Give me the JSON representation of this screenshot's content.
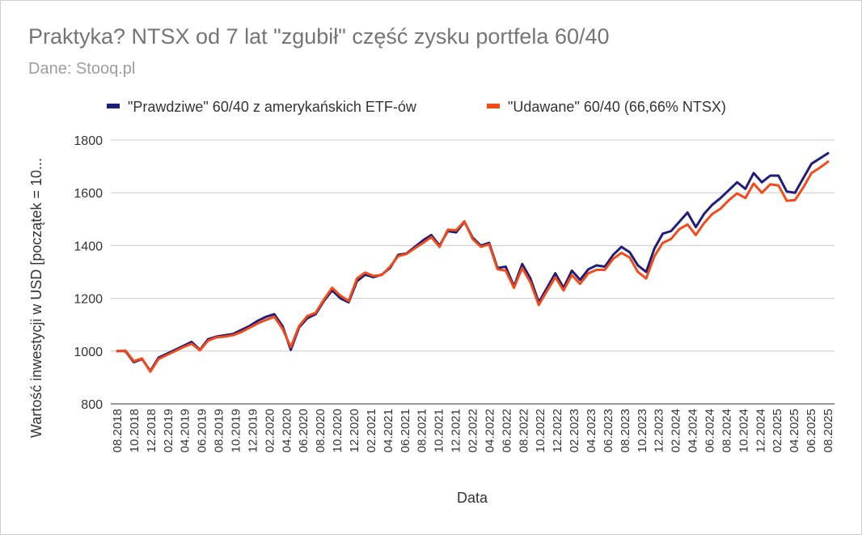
{
  "chart_data": {
    "type": "line",
    "title": "Praktyka? NTSX od 7 lat \"zgubił\" część zysku portfela 60/40",
    "subtitle": "Dane: Stooq.pl",
    "xlabel": "Data",
    "ylabel": "Wartość inwestycji w USD [początek = 10...",
    "ylim": [
      800,
      1800
    ],
    "yticks": [
      800,
      1000,
      1200,
      1400,
      1600,
      1800
    ],
    "grid": true,
    "legend_position": "top",
    "x_tick_labels": [
      "08.2018",
      "10.2018",
      "12.2018",
      "02.2019",
      "04.2019",
      "06.2019",
      "08.2019",
      "10.2019",
      "12.2019",
      "02.2020",
      "04.2020",
      "06.2020",
      "08.2020",
      "10.2020",
      "12.2020",
      "02.2021",
      "04.2021",
      "06.2021",
      "08.2021",
      "10.2021",
      "12.2021",
      "02.2022",
      "04.2022",
      "06.2022",
      "08.2022",
      "10.2022",
      "12.2022",
      "02.2023",
      "04.2023",
      "06.2023",
      "08.2023",
      "10.2023",
      "12.2023",
      "02.2024",
      "04.2024",
      "06.2024",
      "08.2024",
      "10.2024",
      "12.2024",
      "02.2025",
      "04.2025",
      "06.2025",
      "08.2025"
    ],
    "series": [
      {
        "name": "\"Prawdziwe\" 60/40 z amerykańskich ETF-ów",
        "color": "#1f1f7a",
        "values": [
          1000,
          1000,
          958,
          970,
          925,
          975,
          990,
          1005,
          1020,
          1035,
          1005,
          1045,
          1055,
          1060,
          1065,
          1080,
          1095,
          1115,
          1130,
          1140,
          1095,
          1005,
          1090,
          1125,
          1140,
          1190,
          1230,
          1200,
          1185,
          1265,
          1290,
          1280,
          1290,
          1315,
          1365,
          1370,
          1395,
          1420,
          1440,
          1400,
          1455,
          1450,
          1490,
          1430,
          1400,
          1410,
          1315,
          1320,
          1245,
          1330,
          1275,
          1185,
          1240,
          1295,
          1240,
          1305,
          1270,
          1310,
          1325,
          1320,
          1365,
          1395,
          1375,
          1325,
          1300,
          1390,
          1445,
          1455,
          1490,
          1525,
          1470,
          1520,
          1555,
          1580,
          1610,
          1640,
          1615,
          1675,
          1640,
          1665,
          1665,
          1605,
          1600,
          1655,
          1710,
          1730,
          1750
        ]
      },
      {
        "name": "\"Udawane\" 60/40 (66,66% NTSX)",
        "color": "#f24b1a",
        "values": [
          1000,
          1002,
          962,
          972,
          922,
          970,
          985,
          1000,
          1015,
          1028,
          1003,
          1040,
          1052,
          1055,
          1060,
          1072,
          1088,
          1105,
          1118,
          1130,
          1085,
          1015,
          1095,
          1133,
          1145,
          1195,
          1240,
          1210,
          1190,
          1275,
          1298,
          1285,
          1288,
          1320,
          1360,
          1368,
          1390,
          1410,
          1432,
          1395,
          1460,
          1458,
          1492,
          1425,
          1395,
          1405,
          1310,
          1305,
          1240,
          1315,
          1260,
          1175,
          1228,
          1280,
          1230,
          1288,
          1255,
          1295,
          1308,
          1308,
          1350,
          1372,
          1355,
          1300,
          1275,
          1360,
          1410,
          1425,
          1462,
          1480,
          1440,
          1485,
          1520,
          1540,
          1572,
          1598,
          1580,
          1635,
          1600,
          1632,
          1628,
          1570,
          1572,
          1620,
          1675,
          1695,
          1718
        ]
      }
    ]
  }
}
